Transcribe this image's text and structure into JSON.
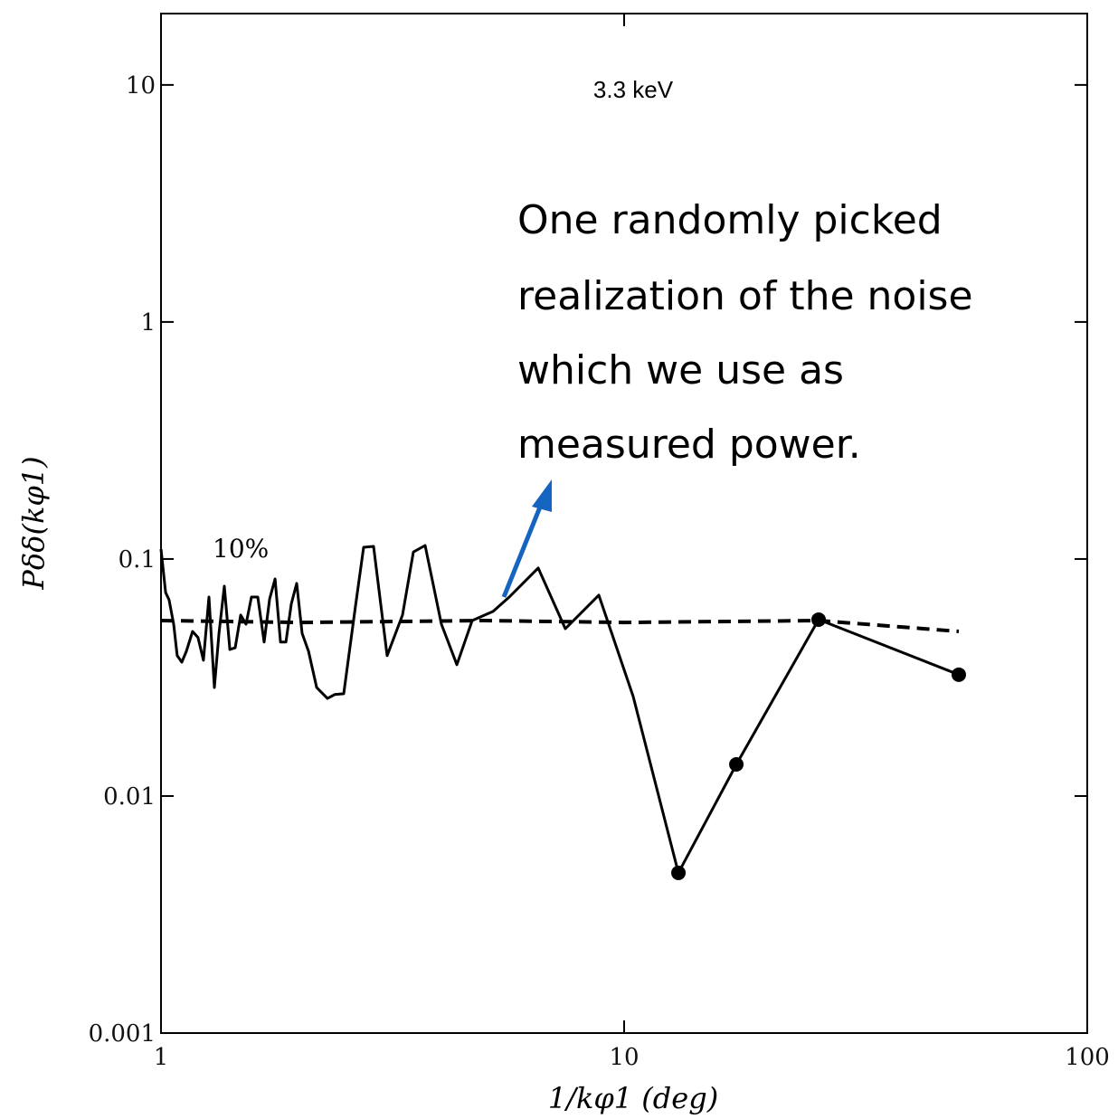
{
  "chart_data": {
    "type": "line",
    "log_x": true,
    "log_y": true,
    "title": "3.3 keV",
    "xlabel": "1/kφ1 (deg)",
    "ylabel": "Pδδ(kφ1)",
    "annotations": [
      "10%",
      "One randomly picked",
      "realization of the noise",
      "which we use as",
      "measured power."
    ],
    "annotation_arrow_color": "#1565c0",
    "xlim": [
      1,
      100
    ],
    "xticks": [
      1,
      10,
      100
    ],
    "ylim": [
      0.001,
      20
    ],
    "yticks": [
      0.001,
      0.01,
      0.1,
      1,
      10
    ],
    "series": [
      {
        "color": "#000000",
        "dashed": false,
        "x": [
          1,
          1.023,
          1.041,
          1.065,
          1.084,
          1.109,
          1.134,
          1.17,
          1.202,
          1.235,
          1.269,
          1.304,
          1.334,
          1.37,
          1.408,
          1.446,
          1.486,
          1.526,
          1.568,
          1.618,
          1.67,
          1.716,
          1.763,
          1.811,
          1.861,
          1.911,
          1.963,
          2.017,
          2.082,
          2.168,
          2.288,
          2.371,
          2.48,
          2.63,
          2.739,
          2.877,
          3.078,
          3.323,
          3.507,
          3.718,
          4.032,
          4.353,
          4.698,
          5.211,
          5.649,
          6.524,
          7.464,
          8.816,
          10.46,
          13.1,
          17.47,
          26.3,
          52.8
        ],
        "values": [
          0.11,
          0.0722,
          0.0673,
          0.0531,
          0.0391,
          0.0367,
          0.0408,
          0.0495,
          0.0466,
          0.0374,
          0.0691,
          0.0287,
          0.0486,
          0.0768,
          0.0415,
          0.0422,
          0.058,
          0.0531,
          0.0691,
          0.0691,
          0.0446,
          0.0679,
          0.0824,
          0.0446,
          0.0446,
          0.0645,
          0.0789,
          0.0486,
          0.0408,
          0.0287,
          0.0258,
          0.0268,
          0.027,
          0.0633,
          0.112,
          0.113,
          0.0391,
          0.058,
          0.107,
          0.114,
          0.0531,
          0.0358,
          0.055,
          0.0601,
          0.0691,
          0.0916,
          0.0508,
          0.0704,
          0.0263,
          0.00474,
          0.0136,
          0.0555,
          0.0325
        ],
        "markers": [
          false,
          false,
          false,
          false,
          false,
          false,
          false,
          false,
          false,
          false,
          false,
          false,
          false,
          false,
          false,
          false,
          false,
          false,
          false,
          false,
          false,
          false,
          false,
          false,
          false,
          false,
          false,
          false,
          false,
          false,
          false,
          false,
          false,
          false,
          false,
          false,
          false,
          false,
          false,
          false,
          false,
          false,
          false,
          false,
          false,
          false,
          false,
          false,
          false,
          true,
          true,
          true,
          true
        ]
      },
      {
        "color": "#000000",
        "dashed": true,
        "x": [
          1,
          2,
          5,
          10,
          26.3,
          52.8
        ],
        "values": [
          0.055,
          0.054,
          0.055,
          0.054,
          0.055,
          0.0495
        ],
        "markers": [
          false,
          false,
          false,
          false,
          false,
          false
        ]
      }
    ]
  }
}
